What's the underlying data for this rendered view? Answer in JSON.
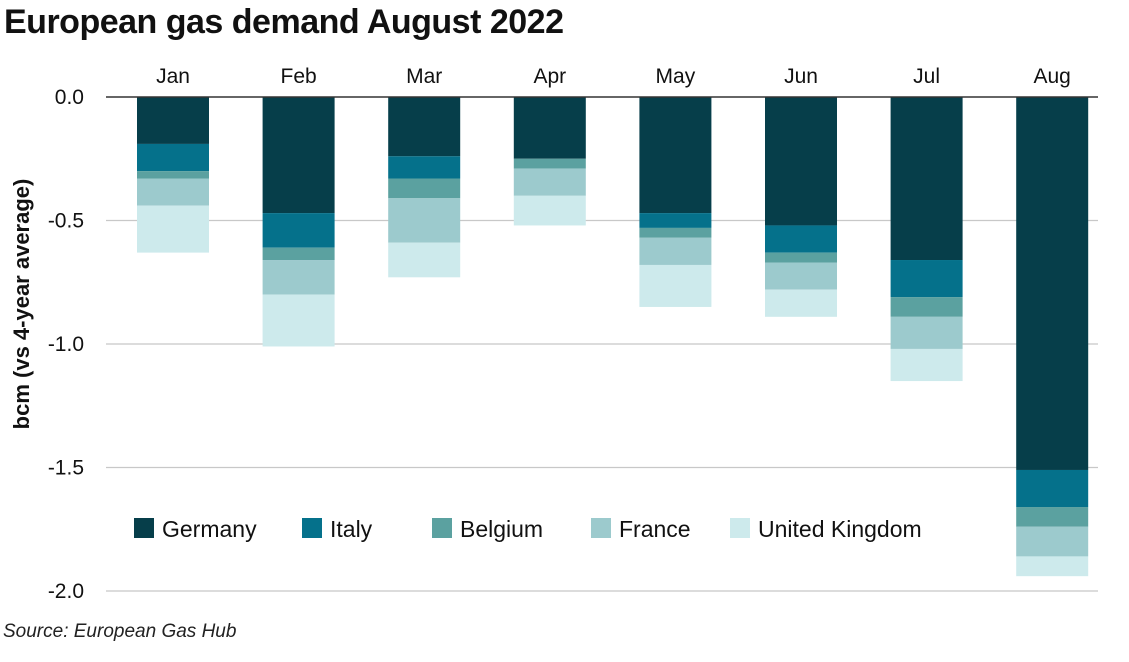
{
  "title": "European gas demand August 2022",
  "source": "Source: European Gas Hub",
  "chart_data": {
    "type": "bar",
    "stacked": true,
    "title": "European gas demand August 2022",
    "xlabel": "",
    "ylabel": "bcm (vs 4-year average)",
    "ylim": [
      -2.0,
      0.0
    ],
    "yticks": [
      0.0,
      -0.5,
      -1.0,
      -1.5,
      -2.0
    ],
    "ytick_labels": [
      "0.0",
      "-0.5",
      "-1.0",
      "-1.5",
      "-2.0"
    ],
    "grid": true,
    "category_axis_position": "top",
    "legend_position": "bottom-left",
    "categories": [
      "Jan",
      "Feb",
      "Mar",
      "Apr",
      "May",
      "Jun",
      "Jul",
      "Aug"
    ],
    "series": [
      {
        "name": "Germany",
        "color": "#063e4a",
        "values": [
          -0.19,
          -0.47,
          -0.24,
          -0.25,
          -0.47,
          -0.52,
          -0.66,
          -1.51
        ]
      },
      {
        "name": "Italy",
        "color": "#05718b",
        "values": [
          -0.11,
          -0.14,
          -0.09,
          0.0,
          -0.06,
          -0.11,
          -0.15,
          -0.15
        ]
      },
      {
        "name": "Belgium",
        "color": "#5ba1a0",
        "values": [
          -0.03,
          -0.05,
          -0.08,
          -0.04,
          -0.04,
          -0.04,
          -0.08,
          -0.08
        ]
      },
      {
        "name": "France",
        "color": "#9ccacd",
        "values": [
          -0.11,
          -0.14,
          -0.18,
          -0.11,
          -0.11,
          -0.11,
          -0.13,
          -0.12
        ]
      },
      {
        "name": "United Kingdom",
        "color": "#cdeaec",
        "values": [
          -0.19,
          -0.21,
          -0.14,
          -0.12,
          -0.17,
          -0.11,
          -0.13,
          -0.08
        ]
      }
    ]
  }
}
